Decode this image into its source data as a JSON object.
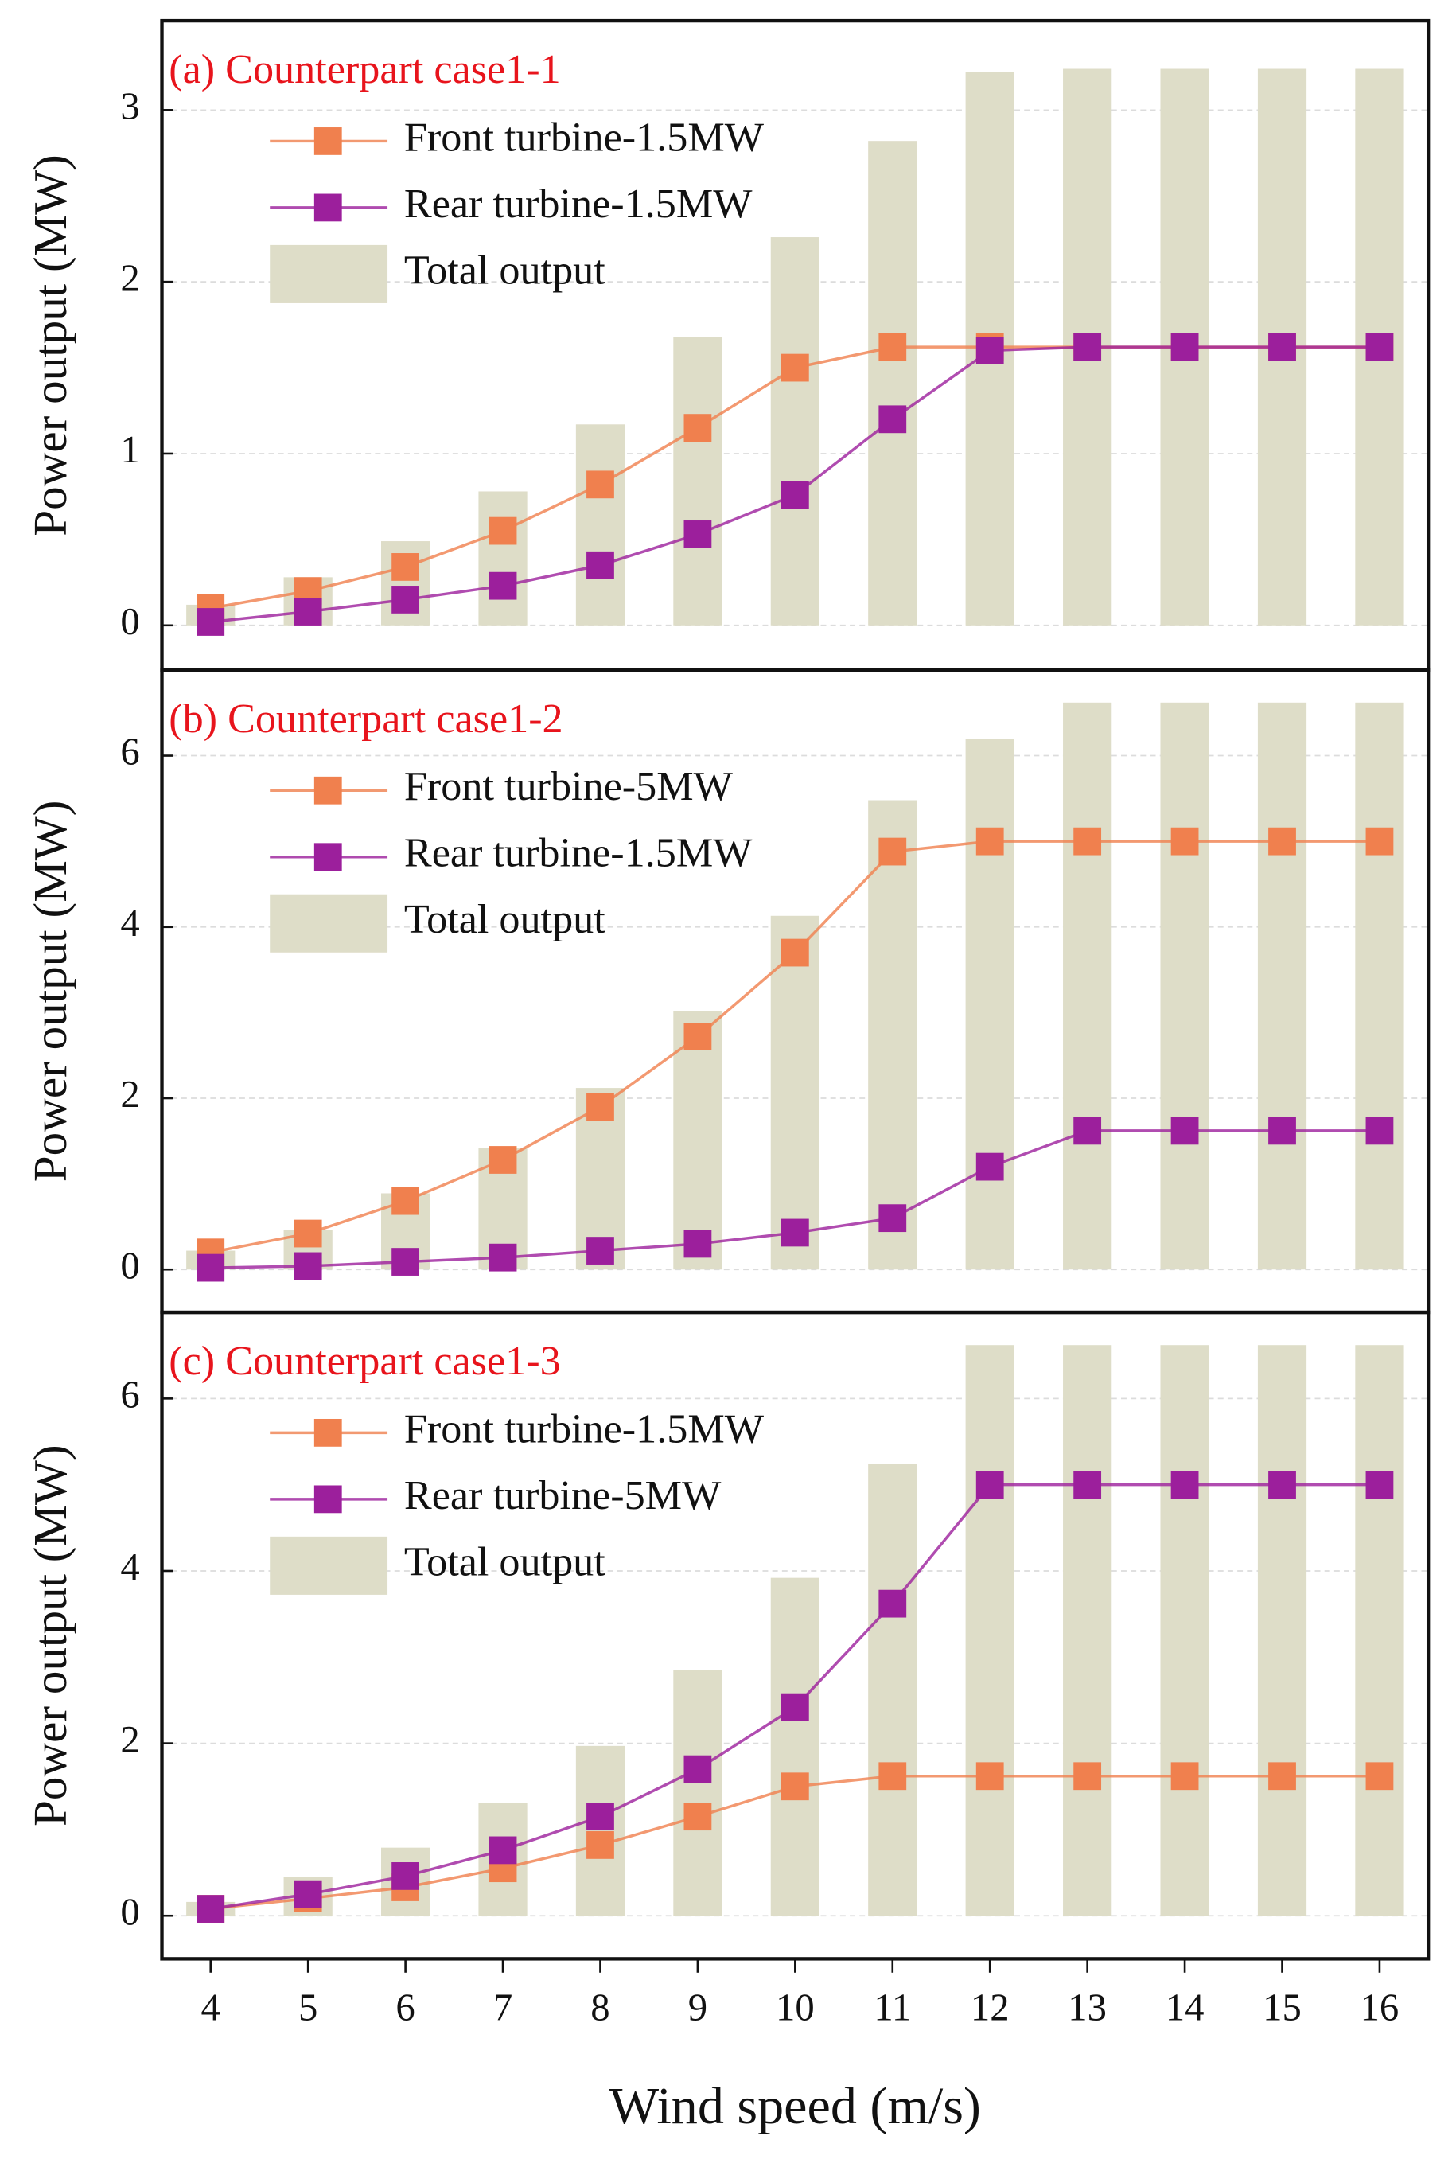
{
  "chart_data": [
    {
      "type": "combo",
      "title": "(a) Counterpart case1-1",
      "y_label": "Power output (MW)",
      "x": [
        4,
        5,
        6,
        7,
        8,
        9,
        10,
        11,
        12,
        13,
        14,
        15,
        16
      ],
      "xlim": [
        3.5,
        16.5
      ],
      "ylim": [
        -0.26,
        3.52
      ],
      "yticks": [
        0,
        1,
        2,
        3
      ],
      "grid": true,
      "series": [
        {
          "name": "Front turbine-1.5MW",
          "kind": "line",
          "color": "#f0804e",
          "values": [
            0.1,
            0.2,
            0.34,
            0.55,
            0.82,
            1.15,
            1.5,
            1.62,
            1.62,
            1.62,
            1.62,
            1.62,
            1.62
          ]
        },
        {
          "name": "Rear turbine-1.5MW",
          "kind": "line",
          "color": "#9c1f9c",
          "values": [
            0.02,
            0.08,
            0.15,
            0.23,
            0.35,
            0.53,
            0.76,
            1.2,
            1.6,
            1.62,
            1.62,
            1.62,
            1.62
          ]
        },
        {
          "name": "Total output",
          "kind": "bar",
          "color": "#deddc8",
          "values": [
            0.12,
            0.28,
            0.49,
            0.78,
            1.17,
            1.68,
            2.26,
            2.82,
            3.22,
            3.24,
            3.24,
            3.24,
            3.24
          ]
        }
      ]
    },
    {
      "type": "combo",
      "title": "(b) Counterpart case1-2",
      "y_label": "Power output (MW)",
      "x": [
        4,
        5,
        6,
        7,
        8,
        9,
        10,
        11,
        12,
        13,
        14,
        15,
        16
      ],
      "xlim": [
        3.5,
        16.5
      ],
      "ylim": [
        -0.5,
        7
      ],
      "yticks": [
        0,
        2,
        4,
        6
      ],
      "grid": true,
      "series": [
        {
          "name": "Front turbine-5MW",
          "kind": "line",
          "color": "#f0804e",
          "values": [
            0.2,
            0.42,
            0.8,
            1.28,
            1.9,
            2.72,
            3.7,
            4.88,
            5,
            5,
            5,
            5,
            5
          ]
        },
        {
          "name": "Rear turbine-1.5MW",
          "kind": "line",
          "color": "#9c1f9c",
          "values": [
            0.02,
            0.04,
            0.09,
            0.14,
            0.22,
            0.3,
            0.43,
            0.6,
            1.2,
            1.62,
            1.62,
            1.62,
            1.62
          ]
        },
        {
          "name": "Total output",
          "kind": "bar",
          "color": "#deddc8",
          "values": [
            0.22,
            0.46,
            0.89,
            1.42,
            2.12,
            3.02,
            4.13,
            5.48,
            6.2,
            6.62,
            6.62,
            6.62,
            6.62
          ]
        }
      ]
    },
    {
      "type": "combo",
      "title": "(c) Counterpart case1-3",
      "y_label": "Power output (MW)",
      "x_label": "Wind speed (m/s)",
      "x": [
        4,
        5,
        6,
        7,
        8,
        9,
        10,
        11,
        12,
        13,
        14,
        15,
        16
      ],
      "xlim": [
        3.5,
        16.5
      ],
      "xticks": [
        4,
        5,
        6,
        7,
        8,
        9,
        10,
        11,
        12,
        13,
        14,
        15,
        16
      ],
      "ylim": [
        -0.5,
        7
      ],
      "yticks": [
        0,
        2,
        4,
        6
      ],
      "grid": true,
      "series": [
        {
          "name": "Front turbine-1.5MW",
          "kind": "line",
          "color": "#f0804e",
          "values": [
            0.08,
            0.2,
            0.33,
            0.55,
            0.82,
            1.15,
            1.5,
            1.62,
            1.62,
            1.62,
            1.62,
            1.62,
            1.62
          ]
        },
        {
          "name": "Rear turbine-5MW",
          "kind": "line",
          "color": "#9c1f9c",
          "values": [
            0.08,
            0.25,
            0.46,
            0.76,
            1.15,
            1.7,
            2.42,
            3.62,
            5,
            5,
            5,
            5,
            5
          ]
        },
        {
          "name": "Total output",
          "kind": "bar",
          "color": "#deddc8",
          "values": [
            0.16,
            0.45,
            0.79,
            1.31,
            1.97,
            2.85,
            3.92,
            5.24,
            6.62,
            6.62,
            6.62,
            6.62,
            6.62
          ]
        }
      ]
    }
  ]
}
